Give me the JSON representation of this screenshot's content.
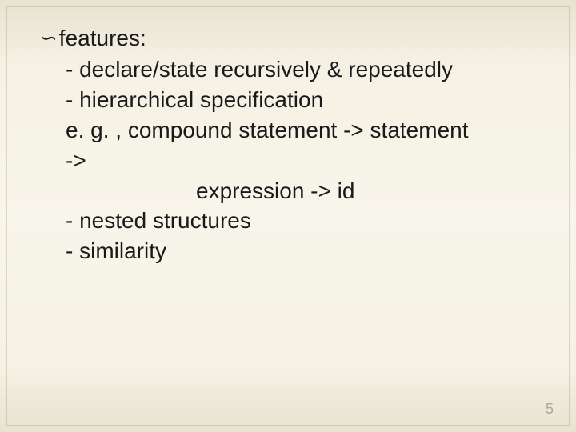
{
  "slide": {
    "bullet_symbol": "∽",
    "heading": "features:",
    "lines": [
      "- declare/state recursively & repeatedly",
      "- hierarchical specification",
      " e. g. ,  compound statement -> statement",
      "->"
    ],
    "indented_line": "expression -> id",
    "lines_after": [
      "- nested structures",
      "- similarity"
    ],
    "page_number": "5"
  },
  "colors": {
    "text": "#1a1a1a",
    "page_number": "#b0a890",
    "bg_top": "#e8e2d0",
    "bg_mid": "#f8f5ea"
  }
}
